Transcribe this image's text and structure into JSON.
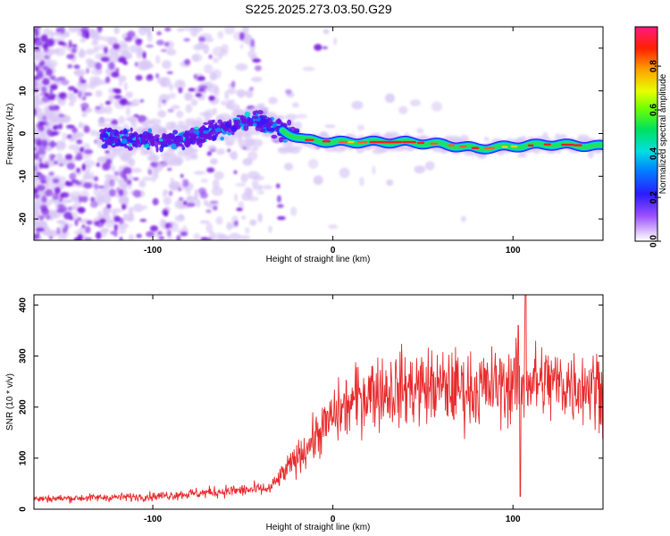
{
  "title": "S225.2025.273.03.50.G29",
  "chart_data": [
    {
      "type": "heatmap",
      "title": "S225.2025.273.03.50.G29",
      "xlabel": "Height of straight line (km)",
      "ylabel": "Frequency (Hz)",
      "xlim": [
        -166,
        150
      ],
      "ylim": [
        -25,
        25
      ],
      "x_ticks": [
        -100,
        0,
        100
      ],
      "y_ticks": [
        -20,
        -10,
        0,
        10,
        20
      ],
      "colorbar": {
        "label": "Normalized spectral amplitude",
        "range": [
          0,
          0.98
        ],
        "ticks": [
          0.0,
          0.2,
          0.4,
          0.6,
          0.8
        ],
        "tick_labels": [
          "0.0",
          "0.2",
          "0.4",
          "0.6",
          "0.8"
        ]
      },
      "ridge": {
        "x": [
          -125,
          -110,
          -95,
          -80,
          -65,
          -55,
          -45,
          -35,
          -25,
          -15,
          0,
          20,
          40,
          60,
          80,
          100,
          120,
          150
        ],
        "frequency": [
          -1,
          -1.5,
          -2,
          -1,
          1,
          2,
          3,
          2,
          0,
          -1.5,
          -2,
          -2,
          -2,
          -2.5,
          -3.5,
          -3,
          -2.5,
          -3
        ]
      }
    },
    {
      "type": "line",
      "xlabel": "Height of straight line (km)",
      "ylabel": "SNR (10 * v/v)",
      "xlim": [
        -166,
        150
      ],
      "ylim": [
        0,
        420
      ],
      "x_ticks": [
        -100,
        0,
        100
      ],
      "y_ticks": [
        0,
        100,
        200,
        300,
        400
      ],
      "series": [
        {
          "name": "SNR",
          "color": "#e8292b",
          "envelope_x": [
            -166,
            -100,
            -60,
            -35,
            -25,
            -10,
            0,
            15,
            20,
            50,
            80,
            110,
            150
          ],
          "envelope_y": [
            20,
            25,
            35,
            40,
            80,
            140,
            180,
            220,
            230,
            240,
            235,
            250,
            240
          ],
          "spikes": [
            {
              "x": 104,
              "y": 25
            },
            {
              "x": 107,
              "y": 420
            },
            {
              "x": 103,
              "y": 360
            }
          ]
        }
      ]
    }
  ],
  "colors": {
    "line": "#e8292b",
    "background": "#ffffff",
    "sparse": "#d9c8f5",
    "dots": "#7a1fe0"
  }
}
